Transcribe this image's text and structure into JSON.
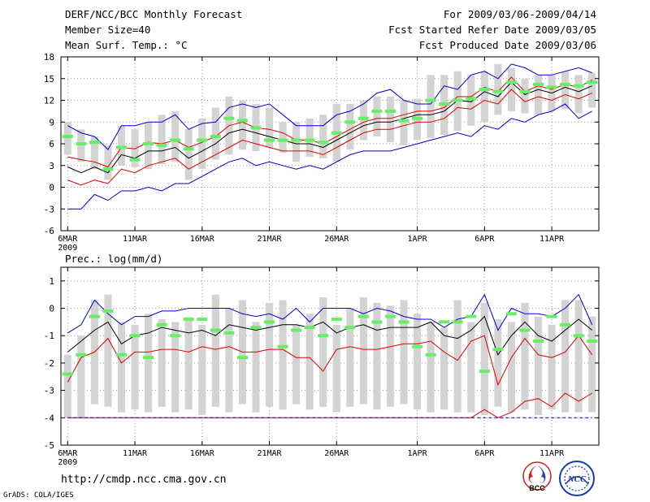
{
  "header": {
    "title": "DERF/NCC/BCC Monthly Forecast",
    "member_size": "Member Size=40",
    "variable": "Mean Surf. Temp.: °C",
    "period": "For 2009/03/06-2009/04/14",
    "started": "Fcst Started Refer Date 2009/03/05",
    "produced": "Fcst Produced Date 2009/03/06"
  },
  "footer": {
    "url": "http://cmdp.ncc.cma.gov.cn",
    "credit": "GrADS: COLA/IGES"
  },
  "logos": [
    {
      "name": "BCC",
      "text": "BCC"
    },
    {
      "name": "NCC",
      "text": "NCC"
    }
  ],
  "colors": {
    "box": "#d3d3d3",
    "median": "#66ee66",
    "mean": "#000000",
    "pct_inner": "#dd0000",
    "pct_outer": "#0000cc",
    "grid": "#999999"
  },
  "chart_data": [
    {
      "type": "line",
      "name": "temperature",
      "title": "Mean Surf. Temp.: °C",
      "ylim": [
        -6,
        18
      ],
      "yticks": [
        -6,
        -3,
        0,
        3,
        6,
        9,
        12,
        15,
        18
      ],
      "ytick_labels": [
        "-6",
        "-3",
        "0",
        "3",
        "6",
        "9",
        "12",
        "15",
        "18"
      ],
      "xlim": [
        0.5,
        40.5
      ],
      "xticks": [
        1,
        6,
        11,
        16,
        21,
        27,
        32,
        37
      ],
      "xtick_labels": [
        "6MAR",
        "11MAR",
        "16MAR",
        "21MAR",
        "26MAR",
        "1APR",
        "6APR",
        "11APR"
      ],
      "year_label": "2009",
      "days": 40,
      "grid": true,
      "box_low": [
        4.5,
        3.5,
        2.5,
        1.0,
        3.0,
        2.8,
        2.5,
        3.2,
        3.5,
        1.0,
        2.5,
        3.8,
        4.5,
        5.2,
        5.0,
        5.5,
        4.8,
        3.5,
        4.2,
        4.0,
        3.5,
        5.2,
        6.5,
        7.0,
        6.2,
        5.8,
        6.5,
        6.8,
        7.2,
        7.8,
        8.5,
        9.0,
        10.0,
        10.5,
        10.2,
        10.0,
        10.5,
        10.8,
        10.2,
        11.0
      ],
      "box_high": [
        9.0,
        8.0,
        7.0,
        5.8,
        8.5,
        8.0,
        9.0,
        10.0,
        10.5,
        8.0,
        9.5,
        11.0,
        12.5,
        12.0,
        11.5,
        11.0,
        9.0,
        9.0,
        9.5,
        10.0,
        11.5,
        11.5,
        12.0,
        12.5,
        12.5,
        12.0,
        12.2,
        15.5,
        15.5,
        16.0,
        15.5,
        16.0,
        17.0,
        16.5,
        15.0,
        15.5,
        15.5,
        16.0,
        15.5,
        15.8
      ],
      "series": [
        {
          "name": "90th percentile",
          "color": "#0000cc",
          "values": [
            8.5,
            7.5,
            7.0,
            5.2,
            8.5,
            8.5,
            9.0,
            9.0,
            10.0,
            8.0,
            8.8,
            9.0,
            11.0,
            11.5,
            11.0,
            11.5,
            10.0,
            8.5,
            8.5,
            8.5,
            10.0,
            10.5,
            11.5,
            13.0,
            13.5,
            12.0,
            11.5,
            11.5,
            14.0,
            13.5,
            15.5,
            16.0,
            15.0,
            17.0,
            16.5,
            15.5,
            15.5,
            16.0,
            16.5,
            15.8
          ]
        },
        {
          "name": "upper",
          "color": "#dd0000",
          "values": [
            4.2,
            3.8,
            3.5,
            2.8,
            5.5,
            5.3,
            6.2,
            6.0,
            6.5,
            5.5,
            6.2,
            7.0,
            8.5,
            9.0,
            8.2,
            8.0,
            7.5,
            6.5,
            6.5,
            6.0,
            7.0,
            8.0,
            9.0,
            9.5,
            9.5,
            10.0,
            10.5,
            10.5,
            11.0,
            12.5,
            12.5,
            13.8,
            13.2,
            15.2,
            13.2,
            14.0,
            13.5,
            14.2,
            13.8,
            14.8
          ]
        },
        {
          "name": "ensemble mean",
          "color": "#000000",
          "values": [
            2.8,
            2.0,
            2.8,
            2.0,
            4.5,
            4.0,
            5.0,
            5.0,
            5.5,
            4.0,
            5.0,
            6.0,
            7.5,
            8.0,
            7.5,
            7.0,
            6.5,
            6.0,
            6.0,
            5.5,
            6.5,
            7.5,
            8.5,
            9.0,
            9.0,
            9.5,
            10.0,
            10.0,
            10.5,
            12.0,
            11.8,
            13.2,
            12.5,
            14.5,
            12.8,
            13.5,
            13.0,
            13.8,
            13.2,
            14.0
          ]
        },
        {
          "name": "lower",
          "color": "#dd0000",
          "values": [
            1.0,
            0.3,
            1.0,
            0.5,
            2.5,
            2.0,
            3.0,
            3.5,
            4.0,
            2.5,
            3.5,
            4.5,
            5.5,
            6.5,
            6.0,
            5.5,
            5.0,
            5.0,
            5.0,
            4.5,
            5.5,
            6.5,
            7.5,
            8.0,
            8.0,
            8.5,
            9.0,
            9.0,
            9.5,
            11.0,
            10.8,
            12.0,
            11.5,
            13.5,
            11.8,
            12.5,
            12.0,
            12.8,
            12.2,
            13.0
          ]
        },
        {
          "name": "10th percentile",
          "color": "#0000cc",
          "values": [
            -3.0,
            -3.0,
            -1.0,
            -1.8,
            -0.5,
            -0.5,
            0.0,
            -0.5,
            0.5,
            0.5,
            1.5,
            2.5,
            3.5,
            4.0,
            3.0,
            3.5,
            3.0,
            2.5,
            3.0,
            2.5,
            3.5,
            4.5,
            5.0,
            5.0,
            5.0,
            5.5,
            6.0,
            6.5,
            7.0,
            7.5,
            7.0,
            8.5,
            8.0,
            9.5,
            9.0,
            10.0,
            10.5,
            11.5,
            9.5,
            10.5
          ]
        },
        {
          "name": "median",
          "color": "#66ee66",
          "style": "marker",
          "values": [
            7.0,
            6.0,
            6.2,
            2.5,
            5.5,
            3.8,
            6.0,
            5.8,
            6.5,
            5.3,
            6.5,
            7.0,
            9.5,
            9.2,
            8.2,
            6.5,
            6.5,
            6.5,
            6.5,
            6.2,
            7.5,
            9.0,
            9.5,
            10.5,
            10.5,
            9.2,
            9.5,
            12.0,
            11.5,
            12.0,
            12.2,
            13.5,
            13.2,
            14.5,
            13.2,
            14.2,
            13.8,
            14.2,
            14.0,
            14.5
          ]
        }
      ]
    },
    {
      "type": "line",
      "name": "precipitation",
      "title": "Prec.: log(mm/d)",
      "ylim": [
        -5,
        1.5
      ],
      "yticks": [
        -5,
        -4,
        -3,
        -2,
        -1,
        0,
        1
      ],
      "ytick_labels": [
        "-5",
        "-4",
        "-3",
        "-2",
        "-1",
        "0",
        "1"
      ],
      "xlim": [
        0.5,
        40.5
      ],
      "xticks": [
        1,
        6,
        11,
        16,
        21,
        27,
        32,
        37
      ],
      "xtick_labels": [
        "6MAR",
        "11MAR",
        "16MAR",
        "21MAR",
        "26MAR",
        "1APR",
        "6APR",
        "11APR"
      ],
      "year_label": "2009",
      "days": 40,
      "grid": true,
      "box_low": [
        -4.0,
        -4.0,
        -3.5,
        -3.6,
        -3.8,
        -3.7,
        -3.8,
        -3.6,
        -3.8,
        -3.7,
        -3.9,
        -3.6,
        -3.8,
        -3.5,
        -3.8,
        -3.6,
        -3.7,
        -3.5,
        -3.7,
        -3.6,
        -3.8,
        -3.6,
        -3.5,
        -3.7,
        -3.6,
        -3.5,
        -3.7,
        -3.8,
        -3.7,
        -3.8,
        -3.8,
        -3.9,
        -3.6,
        -3.8,
        -3.7,
        -3.9,
        -3.7,
        -3.8,
        -3.8,
        -3.8
      ],
      "box_high": [
        -1.7,
        -1.0,
        0.3,
        0.5,
        -0.5,
        -0.6,
        -0.2,
        -0.4,
        -0.5,
        -0.4,
        -0.6,
        0.5,
        0.0,
        0.3,
        -0.5,
        0.2,
        0.3,
        -0.6,
        -0.2,
        0.4,
        -0.6,
        0.0,
        0.4,
        0.2,
        0.1,
        0.3,
        -0.2,
        -0.5,
        -0.7,
        0.3,
        -0.5,
        0.2,
        -0.4,
        -0.5,
        0.2,
        -0.3,
        -0.6,
        0.3,
        0.3,
        -0.3
      ],
      "series": [
        {
          "name": "90th percentile",
          "color": "#0000cc",
          "values": [
            -0.9,
            -0.6,
            0.3,
            -0.2,
            -0.6,
            -0.3,
            -0.3,
            -0.1,
            -0.1,
            0.0,
            0.0,
            0.0,
            0.0,
            -0.2,
            -0.3,
            -0.2,
            -0.4,
            0.0,
            -0.5,
            0.0,
            0.0,
            0.0,
            -0.2,
            0.0,
            -0.1,
            -0.3,
            -0.4,
            -0.4,
            -0.7,
            -0.4,
            -0.3,
            0.5,
            -0.8,
            0.0,
            -0.2,
            -0.2,
            -0.3,
            0.0,
            0.5,
            -0.6
          ]
        },
        {
          "name": "upper",
          "color": "#000000",
          "values": [
            -1.6,
            -1.2,
            -0.8,
            -0.5,
            -1.3,
            -1.0,
            -0.9,
            -0.7,
            -0.8,
            -0.9,
            -0.8,
            -1.0,
            -0.6,
            -0.7,
            -0.8,
            -0.7,
            -0.6,
            -0.6,
            -0.7,
            -0.5,
            -0.9,
            -0.7,
            -0.6,
            -0.8,
            -0.7,
            -0.7,
            -0.7,
            -0.5,
            -1.0,
            -1.1,
            -0.8,
            -0.3,
            -1.7,
            -1.0,
            -0.5,
            -1.0,
            -1.2,
            -0.8,
            -0.4,
            -0.8
          ]
        },
        {
          "name": "lower",
          "color": "#dd0000",
          "values": [
            -2.7,
            -1.8,
            -1.6,
            -1.1,
            -2.0,
            -1.6,
            -1.6,
            -1.5,
            -1.5,
            -1.6,
            -1.4,
            -1.5,
            -1.4,
            -1.6,
            -1.6,
            -1.5,
            -1.5,
            -1.8,
            -1.8,
            -2.3,
            -1.5,
            -1.4,
            -1.5,
            -1.5,
            -1.4,
            -1.3,
            -1.3,
            -1.2,
            -1.6,
            -1.9,
            -1.2,
            -1.0,
            -2.8,
            -1.8,
            -1.1,
            -1.7,
            -1.8,
            -1.6,
            -1.0,
            -1.7
          ]
        },
        {
          "name": "10th percentile",
          "color": "#dd0000",
          "values": [
            -4.0,
            -4.0,
            -4.0,
            -4.0,
            -4.0,
            -4.0,
            -4.0,
            -4.0,
            -4.0,
            -4.0,
            -4.0,
            -4.0,
            -4.0,
            -4.0,
            -4.0,
            -4.0,
            -4.0,
            -4.0,
            -4.0,
            -4.0,
            -4.0,
            -4.0,
            -4.0,
            -4.0,
            -4.0,
            -4.0,
            -4.0,
            -4.0,
            -4.0,
            -4.0,
            -4.0,
            -3.7,
            -4.0,
            -3.8,
            -3.4,
            -3.3,
            -3.6,
            -3.1,
            -3.4,
            -3.1
          ]
        },
        {
          "name": "minimum",
          "color": "#0000cc",
          "style": "dashed",
          "values": [
            -4.0,
            -4.0,
            -4.0,
            -4.0,
            -4.0,
            -4.0,
            -4.0,
            -4.0,
            -4.0,
            -4.0,
            -4.0,
            -4.0,
            -4.0,
            -4.0,
            -4.0,
            -4.0,
            -4.0,
            -4.0,
            -4.0,
            -4.0,
            -4.0,
            -4.0,
            -4.0,
            -4.0,
            -4.0,
            -4.0,
            -4.0,
            -4.0,
            -4.0,
            -4.0,
            -4.0,
            -4.0,
            -4.0,
            -4.0,
            -4.0,
            -4.0,
            -4.0,
            -4.0,
            -4.0,
            -4.0
          ]
        },
        {
          "name": "median",
          "color": "#66ee66",
          "style": "marker",
          "values": [
            -2.4,
            -1.7,
            -0.3,
            -0.1,
            -1.7,
            -1.0,
            -1.8,
            -0.6,
            -1.0,
            -0.4,
            -0.4,
            -0.8,
            -0.9,
            -1.8,
            -0.7,
            -0.5,
            -1.4,
            -0.8,
            -0.7,
            -1.0,
            -0.4,
            -0.7,
            -0.3,
            -0.5,
            -0.3,
            -0.5,
            -1.4,
            -1.7,
            -0.5,
            -0.5,
            -0.3,
            -2.3,
            -1.5,
            -0.2,
            -0.8,
            -1.2,
            -0.3,
            -0.6,
            -1.0,
            -1.2
          ]
        }
      ]
    }
  ]
}
